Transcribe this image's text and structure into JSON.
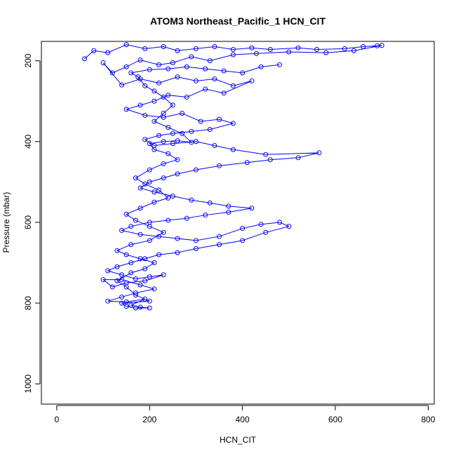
{
  "chart_data": {
    "type": "scatter",
    "title": "ATOM3 Northeast_Pacific_1 HCN_CIT",
    "xlabel": "HCN_CIT",
    "ylabel": "Pressure (mbar)",
    "xlim": [
      -33,
      813
    ],
    "ylim": [
      1050,
      152
    ],
    "y_reversed": true,
    "xticks": [
      0,
      200,
      400,
      600,
      800
    ],
    "yticks": [
      200,
      400,
      600,
      800,
      1000
    ],
    "grid": false,
    "legend": "none",
    "series": [
      {
        "color": "#0000ff",
        "marker": "open-circle",
        "lines": true,
        "points": [
          [
            60,
            195
          ],
          [
            80,
            175
          ],
          [
            110,
            180
          ],
          [
            150,
            160
          ],
          [
            190,
            170
          ],
          [
            230,
            165
          ],
          [
            260,
            175
          ],
          [
            300,
            170
          ],
          [
            340,
            165
          ],
          [
            380,
            172
          ],
          [
            420,
            168
          ],
          [
            460,
            172
          ],
          [
            520,
            168
          ],
          [
            560,
            172
          ],
          [
            620,
            170
          ],
          [
            660,
            165
          ],
          [
            690,
            163
          ],
          [
            700,
            162
          ],
          [
            640,
            175
          ],
          [
            580,
            180
          ],
          [
            500,
            178
          ],
          [
            430,
            182
          ],
          [
            380,
            185
          ],
          [
            330,
            200
          ],
          [
            290,
            190
          ],
          [
            250,
            205
          ],
          [
            220,
            210
          ],
          [
            180,
            198
          ],
          [
            150,
            215
          ],
          [
            120,
            230
          ],
          [
            100,
            205
          ],
          [
            140,
            260
          ],
          [
            180,
            245
          ],
          [
            220,
            255
          ],
          [
            260,
            240
          ],
          [
            300,
            250
          ],
          [
            340,
            245
          ],
          [
            380,
            262
          ],
          [
            420,
            250
          ],
          [
            360,
            280
          ],
          [
            320,
            270
          ],
          [
            280,
            290
          ],
          [
            240,
            285
          ],
          [
            210,
            300
          ],
          [
            180,
            310
          ],
          [
            150,
            320
          ],
          [
            190,
            335
          ],
          [
            230,
            340
          ],
          [
            270,
            330
          ],
          [
            310,
            350
          ],
          [
            350,
            345
          ],
          [
            380,
            355
          ],
          [
            330,
            370
          ],
          [
            290,
            375
          ],
          [
            250,
            380
          ],
          [
            220,
            385
          ],
          [
            190,
            395
          ],
          [
            210,
            410
          ],
          [
            250,
            405
          ],
          [
            300,
            400
          ],
          [
            340,
            410
          ],
          [
            380,
            420
          ],
          [
            450,
            432
          ],
          [
            565,
            428
          ],
          [
            520,
            440
          ],
          [
            460,
            445
          ],
          [
            410,
            452
          ],
          [
            350,
            460
          ],
          [
            300,
            470
          ],
          [
            260,
            480
          ],
          [
            230,
            490
          ],
          [
            200,
            500
          ],
          [
            180,
            515
          ],
          [
            210,
            525
          ],
          [
            250,
            535
          ],
          [
            290,
            545
          ],
          [
            330,
            552
          ],
          [
            370,
            560
          ],
          [
            420,
            565
          ],
          [
            370,
            575
          ],
          [
            320,
            582
          ],
          [
            280,
            590
          ],
          [
            240,
            595
          ],
          [
            200,
            600
          ],
          [
            160,
            610
          ],
          [
            140,
            620
          ],
          [
            180,
            630
          ],
          [
            220,
            635
          ],
          [
            260,
            640
          ],
          [
            300,
            645
          ],
          [
            350,
            635
          ],
          [
            400,
            615
          ],
          [
            440,
            605
          ],
          [
            480,
            600
          ],
          [
            500,
            610
          ],
          [
            450,
            625
          ],
          [
            400,
            645
          ],
          [
            350,
            655
          ],
          [
            300,
            665
          ],
          [
            260,
            675
          ],
          [
            220,
            680
          ],
          [
            190,
            690
          ],
          [
            160,
            700
          ],
          [
            130,
            710
          ],
          [
            110,
            720
          ],
          [
            140,
            730
          ],
          [
            170,
            740
          ],
          [
            200,
            735
          ],
          [
            230,
            730
          ],
          [
            190,
            745
          ],
          [
            150,
            750
          ],
          [
            120,
            760
          ],
          [
            100,
            742
          ],
          [
            140,
            742
          ],
          [
            180,
            755
          ],
          [
            210,
            765
          ],
          [
            170,
            775
          ],
          [
            140,
            785
          ],
          [
            110,
            795
          ],
          [
            150,
            797
          ],
          [
            190,
            790
          ],
          [
            160,
            805
          ],
          [
            180,
            810
          ],
          [
            200,
            812
          ],
          [
            170,
            812
          ],
          [
            150,
            808
          ],
          [
            140,
            800
          ],
          [
            200,
            795
          ],
          [
            170,
            780
          ],
          [
            150,
            760
          ],
          [
            130,
            745
          ],
          [
            160,
            725
          ],
          [
            190,
            715
          ],
          [
            210,
            700
          ],
          [
            180,
            690
          ],
          [
            150,
            680
          ],
          [
            130,
            670
          ],
          [
            160,
            655
          ],
          [
            200,
            645
          ],
          [
            230,
            625
          ],
          [
            200,
            610
          ],
          [
            170,
            595
          ],
          [
            150,
            580
          ],
          [
            180,
            565
          ],
          [
            210,
            550
          ],
          [
            240,
            540
          ],
          [
            220,
            520
          ],
          [
            190,
            505
          ],
          [
            170,
            490
          ],
          [
            200,
            470
          ],
          [
            230,
            455
          ],
          [
            260,
            445
          ],
          [
            240,
            430
          ],
          [
            210,
            420
          ],
          [
            200,
            405
          ],
          [
            230,
            400
          ],
          [
            260,
            398
          ],
          [
            290,
            402
          ],
          [
            270,
            380
          ],
          [
            240,
            365
          ],
          [
            210,
            350
          ],
          [
            230,
            330
          ],
          [
            250,
            310
          ],
          [
            230,
            290
          ],
          [
            210,
            275
          ],
          [
            190,
            262
          ],
          [
            175,
            240
          ],
          [
            160,
            230
          ],
          [
            200,
            222
          ],
          [
            240,
            220
          ],
          [
            280,
            215
          ],
          [
            320,
            220
          ],
          [
            360,
            225
          ],
          [
            400,
            230
          ],
          [
            440,
            215
          ],
          [
            480,
            210
          ]
        ]
      }
    ]
  }
}
